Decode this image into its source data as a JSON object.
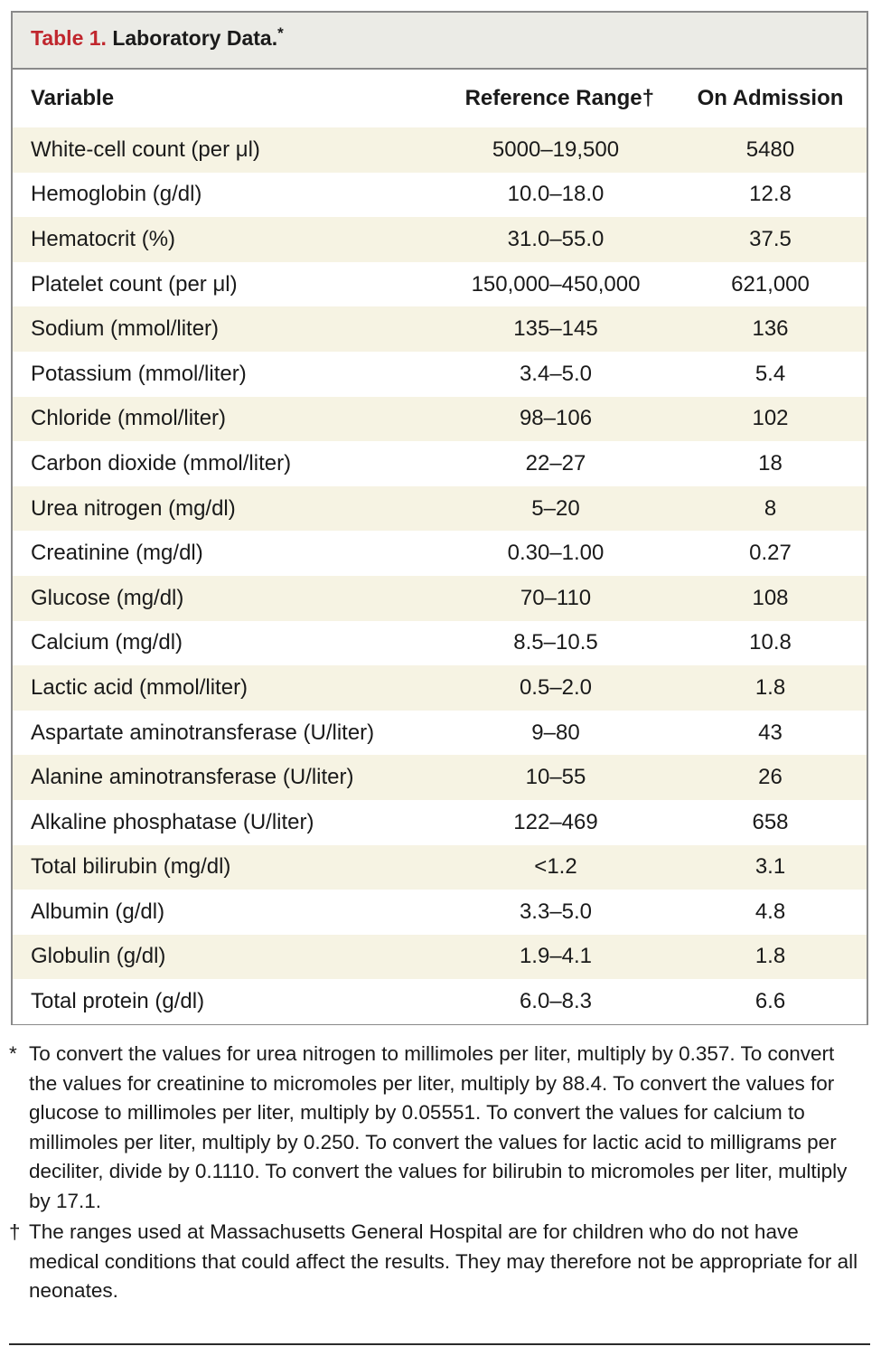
{
  "title": {
    "number": "Table 1.",
    "text": "Laboratory Data.",
    "mark": "*"
  },
  "headers": {
    "variable": "Variable",
    "reference_range": "Reference Range†",
    "on_admission": "On Admission"
  },
  "rows": [
    {
      "variable": "White-cell count (per μl)",
      "range": "5000–19,500",
      "admission": "5480"
    },
    {
      "variable": "Hemoglobin (g/dl)",
      "range": "10.0–18.0",
      "admission": "12.8"
    },
    {
      "variable": "Hematocrit (%)",
      "range": "31.0–55.0",
      "admission": "37.5"
    },
    {
      "variable": "Platelet count (per μl)",
      "range": "150,000–450,000",
      "admission": "621,000"
    },
    {
      "variable": "Sodium (mmol/liter)",
      "range": "135–145",
      "admission": "136"
    },
    {
      "variable": "Potassium (mmol/liter)",
      "range": "3.4–5.0",
      "admission": "5.4"
    },
    {
      "variable": "Chloride (mmol/liter)",
      "range": "98–106",
      "admission": "102"
    },
    {
      "variable": "Carbon dioxide (mmol/liter)",
      "range": "22–27",
      "admission": "18"
    },
    {
      "variable": "Urea nitrogen (mg/dl)",
      "range": "5–20",
      "admission": "8"
    },
    {
      "variable": "Creatinine (mg/dl)",
      "range": "0.30–1.00",
      "admission": "0.27"
    },
    {
      "variable": "Glucose (mg/dl)",
      "range": "70–110",
      "admission": "108"
    },
    {
      "variable": "Calcium (mg/dl)",
      "range": "8.5–10.5",
      "admission": "10.8"
    },
    {
      "variable": "Lactic acid (mmol/liter)",
      "range": "0.5–2.0",
      "admission": "1.8"
    },
    {
      "variable": "Aspartate aminotransferase (U/liter)",
      "range": "9–80",
      "admission": "43"
    },
    {
      "variable": "Alanine aminotransferase (U/liter)",
      "range": "10–55",
      "admission": "26"
    },
    {
      "variable": "Alkaline phosphatase (U/liter)",
      "range": "122–469",
      "admission": "658"
    },
    {
      "variable": "Total bilirubin (mg/dl)",
      "range": "<1.2",
      "admission": "3.1"
    },
    {
      "variable": "Albumin (g/dl)",
      "range": "3.3–5.0",
      "admission": "4.8"
    },
    {
      "variable": "Globulin (g/dl)",
      "range": "1.9–4.1",
      "admission": "1.8"
    },
    {
      "variable": "Total protein (g/dl)",
      "range": "6.0–8.3",
      "admission": "6.6"
    }
  ],
  "footnotes": [
    {
      "mark": "*",
      "text": "To convert the values for urea nitrogen to millimoles per liter, multiply by 0.357. To convert the values for creatinine to micromoles per liter, multiply by 88.4. To convert the values for glucose to millimoles per liter, multiply by 0.05551. To convert the values for calcium to millimoles per liter, multiply by 0.250. To convert the values for lactic acid to milligrams per deciliter, divide by 0.1110. To convert the values for bilirubin to micromoles per liter, multiply by 17.1."
    },
    {
      "mark": "†",
      "text": "The ranges used at Massachusetts General Hospital are for children who do not have medical conditions that could affect the results. They may therefore not be appropriate for all neonates."
    }
  ],
  "colors": {
    "title_accent": "#c0262d",
    "title_bar_bg": "#ebebe6",
    "row_shade": "#f6f3e3",
    "border": "#8a8a8a"
  }
}
